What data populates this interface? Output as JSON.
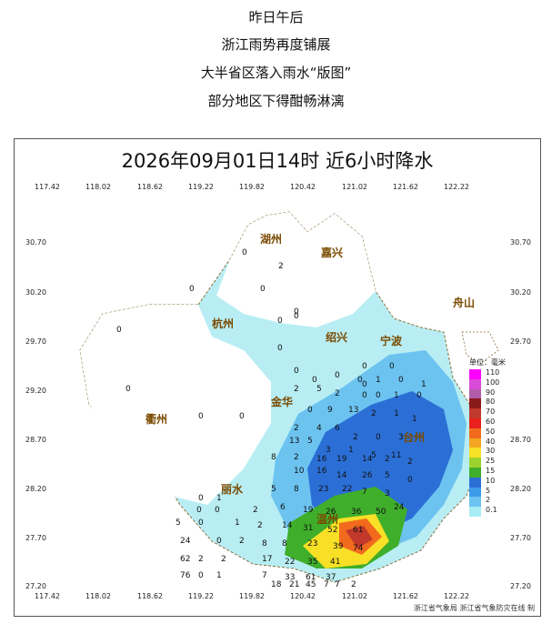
{
  "headlines": [
    "昨日午后",
    "浙江雨势再度铺展",
    "大半省区落入雨水“版图”",
    "部分地区下得酣畅淋漓"
  ],
  "map": {
    "title": "2026年09月01日14时  近6小时降水",
    "lon_ticks": [
      "117.42",
      "118.02",
      "118.62",
      "119.22",
      "119.82",
      "120.42",
      "121.02",
      "121.62",
      "122.22"
    ],
    "lat_ticks": [
      "30.70",
      "30.20",
      "29.70",
      "29.20",
      "28.70",
      "28.20",
      "27.70",
      "27.20"
    ],
    "cities": [
      "湖州",
      "嘉兴",
      "杭州",
      "绍兴",
      "宁波",
      "舟山",
      "金华",
      "衢州",
      "台州",
      "丽水",
      "温州"
    ],
    "credit": "浙江省气象局  浙江省气象防灾在线  制",
    "legend": {
      "title": "单位：毫米",
      "levels": [
        {
          "label": "110",
          "color": "#ff00ff"
        },
        {
          "label": "100",
          "color": "#d94ad9"
        },
        {
          "label": "90",
          "color": "#b05ca8"
        },
        {
          "label": "80",
          "color": "#8b1a1a"
        },
        {
          "label": "70",
          "color": "#c0392b"
        },
        {
          "label": "60",
          "color": "#e8211c"
        },
        {
          "label": "50",
          "color": "#f26b1d"
        },
        {
          "label": "40",
          "color": "#f5a623"
        },
        {
          "label": "30",
          "color": "#f7e025"
        },
        {
          "label": "25",
          "color": "#9bd32e"
        },
        {
          "label": "15",
          "color": "#3fae2a"
        },
        {
          "label": "10",
          "color": "#2b6fd6"
        },
        {
          "label": "5",
          "color": "#3d9ae8"
        },
        {
          "label": "2",
          "color": "#6cc3f0"
        },
        {
          "label": "0.1",
          "color": "#a8ecf5"
        }
      ]
    },
    "station_values": [
      "0",
      "2",
      "0",
      "0",
      "0",
      "0",
      "0",
      "0",
      "0",
      "0",
      "0",
      "0",
      "0",
      "0",
      "0",
      "0",
      "0",
      "0",
      "0",
      "0",
      "0",
      "1",
      "0",
      "1",
      "2",
      "5",
      "2",
      "0",
      "0",
      "1",
      "0",
      "0",
      "9",
      "13",
      "2",
      "1",
      "1",
      "2",
      "4",
      "6",
      "2",
      "0",
      "3",
      "13",
      "5",
      "3",
      "1",
      "5",
      "11",
      "8",
      "2",
      "16",
      "19",
      "14",
      "2",
      "2",
      "10",
      "16",
      "14",
      "26",
      "5",
      "0",
      "0",
      "1",
      "5",
      "8",
      "23",
      "22",
      "7",
      "3",
      "2",
      "6",
      "19",
      "26",
      "36",
      "50",
      "24",
      "5",
      "0",
      "1",
      "2",
      "14",
      "31",
      "52",
      "61",
      "24",
      "0",
      "2",
      "8",
      "8",
      "23",
      "39",
      "74",
      "62",
      "2",
      "2",
      "17",
      "22",
      "35",
      "41",
      "76",
      "0",
      "1",
      "7",
      "33",
      "61",
      "37",
      "18",
      "21",
      "45",
      "7",
      "7",
      "2"
    ]
  }
}
